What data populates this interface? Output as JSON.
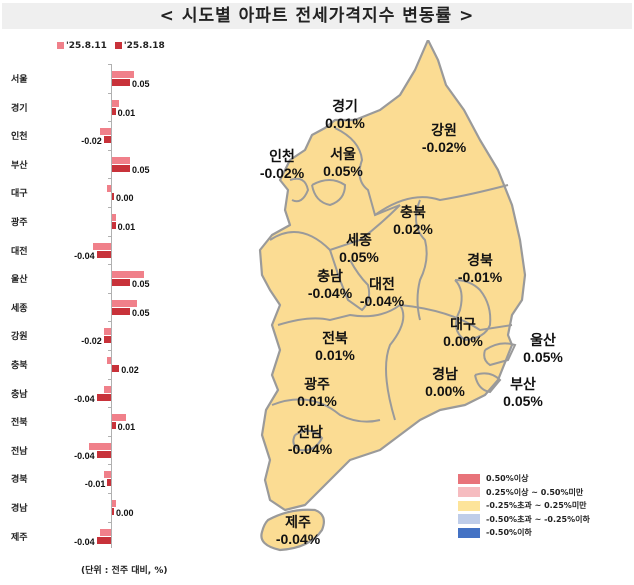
{
  "title": "< 시도별 아파트 전세가격지수 변동률 >",
  "legend_top": [
    {
      "label": "'25.8.11",
      "color": "#f0808a"
    },
    {
      "label": "'25.8.18",
      "color": "#c8323a"
    }
  ],
  "unit_note": "(단위 : 전주 대비, %)",
  "chart_data": [
    {
      "type": "bar",
      "orientation": "horizontal",
      "title": "시도별 아파트 전세가격지수 변동률",
      "categories": [
        "서울",
        "경기",
        "인천",
        "부산",
        "대구",
        "광주",
        "대전",
        "울산",
        "세종",
        "강원",
        "충북",
        "충남",
        "전북",
        "전남",
        "경북",
        "경남",
        "제주"
      ],
      "series": [
        {
          "name": "'25.8.11",
          "values": [
            0.06,
            0.02,
            -0.03,
            0.05,
            -0.01,
            0.01,
            -0.05,
            0.09,
            0.07,
            -0.02,
            -0.01,
            -0.02,
            0.04,
            -0.06,
            -0.02,
            0.01,
            -0.03
          ]
        },
        {
          "name": "'25.8.18",
          "values": [
            0.05,
            0.01,
            -0.02,
            0.05,
            0.0,
            0.01,
            -0.04,
            0.05,
            0.05,
            -0.02,
            0.02,
            -0.04,
            0.01,
            -0.04,
            -0.01,
            0.0,
            -0.04
          ]
        }
      ],
      "data_labels": [
        "0.05",
        "0.01",
        "-0.02",
        "0.05",
        "0.00",
        "0.01",
        "-0.04",
        "0.05",
        "0.05",
        "-0.02",
        "0.02",
        "-0.04",
        "0.01",
        "-0.04",
        "-0.01",
        "0.00",
        "-0.04"
      ],
      "xlabel": "",
      "ylabel": "",
      "unit": "전주 대비, %",
      "legend_position": "top"
    },
    {
      "type": "map",
      "title": "시도별 아파트 전세가격지수 변동률 지도",
      "regions": [
        {
          "name": "경기",
          "value": "0.01%"
        },
        {
          "name": "서울",
          "value": "0.05%"
        },
        {
          "name": "인천",
          "value": "-0.02%"
        },
        {
          "name": "강원",
          "value": "-0.02%"
        },
        {
          "name": "충북",
          "value": "0.02%"
        },
        {
          "name": "세종",
          "value": "0.05%"
        },
        {
          "name": "충남",
          "value": "-0.04%"
        },
        {
          "name": "대전",
          "value": "-0.04%"
        },
        {
          "name": "경북",
          "value": "-0.01%"
        },
        {
          "name": "전북",
          "value": "0.01%"
        },
        {
          "name": "대구",
          "value": "0.00%"
        },
        {
          "name": "울산",
          "value": "0.05%"
        },
        {
          "name": "경남",
          "value": "0.00%"
        },
        {
          "name": "부산",
          "value": "0.05%"
        },
        {
          "name": "광주",
          "value": "0.01%"
        },
        {
          "name": "전남",
          "value": "-0.04%"
        },
        {
          "name": "제주",
          "value": "-0.04%"
        }
      ],
      "legend": [
        {
          "label": "0.50%이상",
          "color": "#e8737a"
        },
        {
          "label": "0.25%이상 ~ 0.50%미만",
          "color": "#f6bcc0"
        },
        {
          "label": "-0.25%초과 ~ 0.25%미만",
          "color": "#fde49a"
        },
        {
          "label": "-0.50%초과 ~ -0.25%이하",
          "color": "#bfcde9"
        },
        {
          "label": "-0.50%이하",
          "color": "#4472c4"
        }
      ]
    }
  ],
  "colors": {
    "map_fill": "#fbdc93",
    "map_border": "#9a9a9a",
    "bar_prev": "#f0808a",
    "bar_curr": "#c8323a"
  }
}
